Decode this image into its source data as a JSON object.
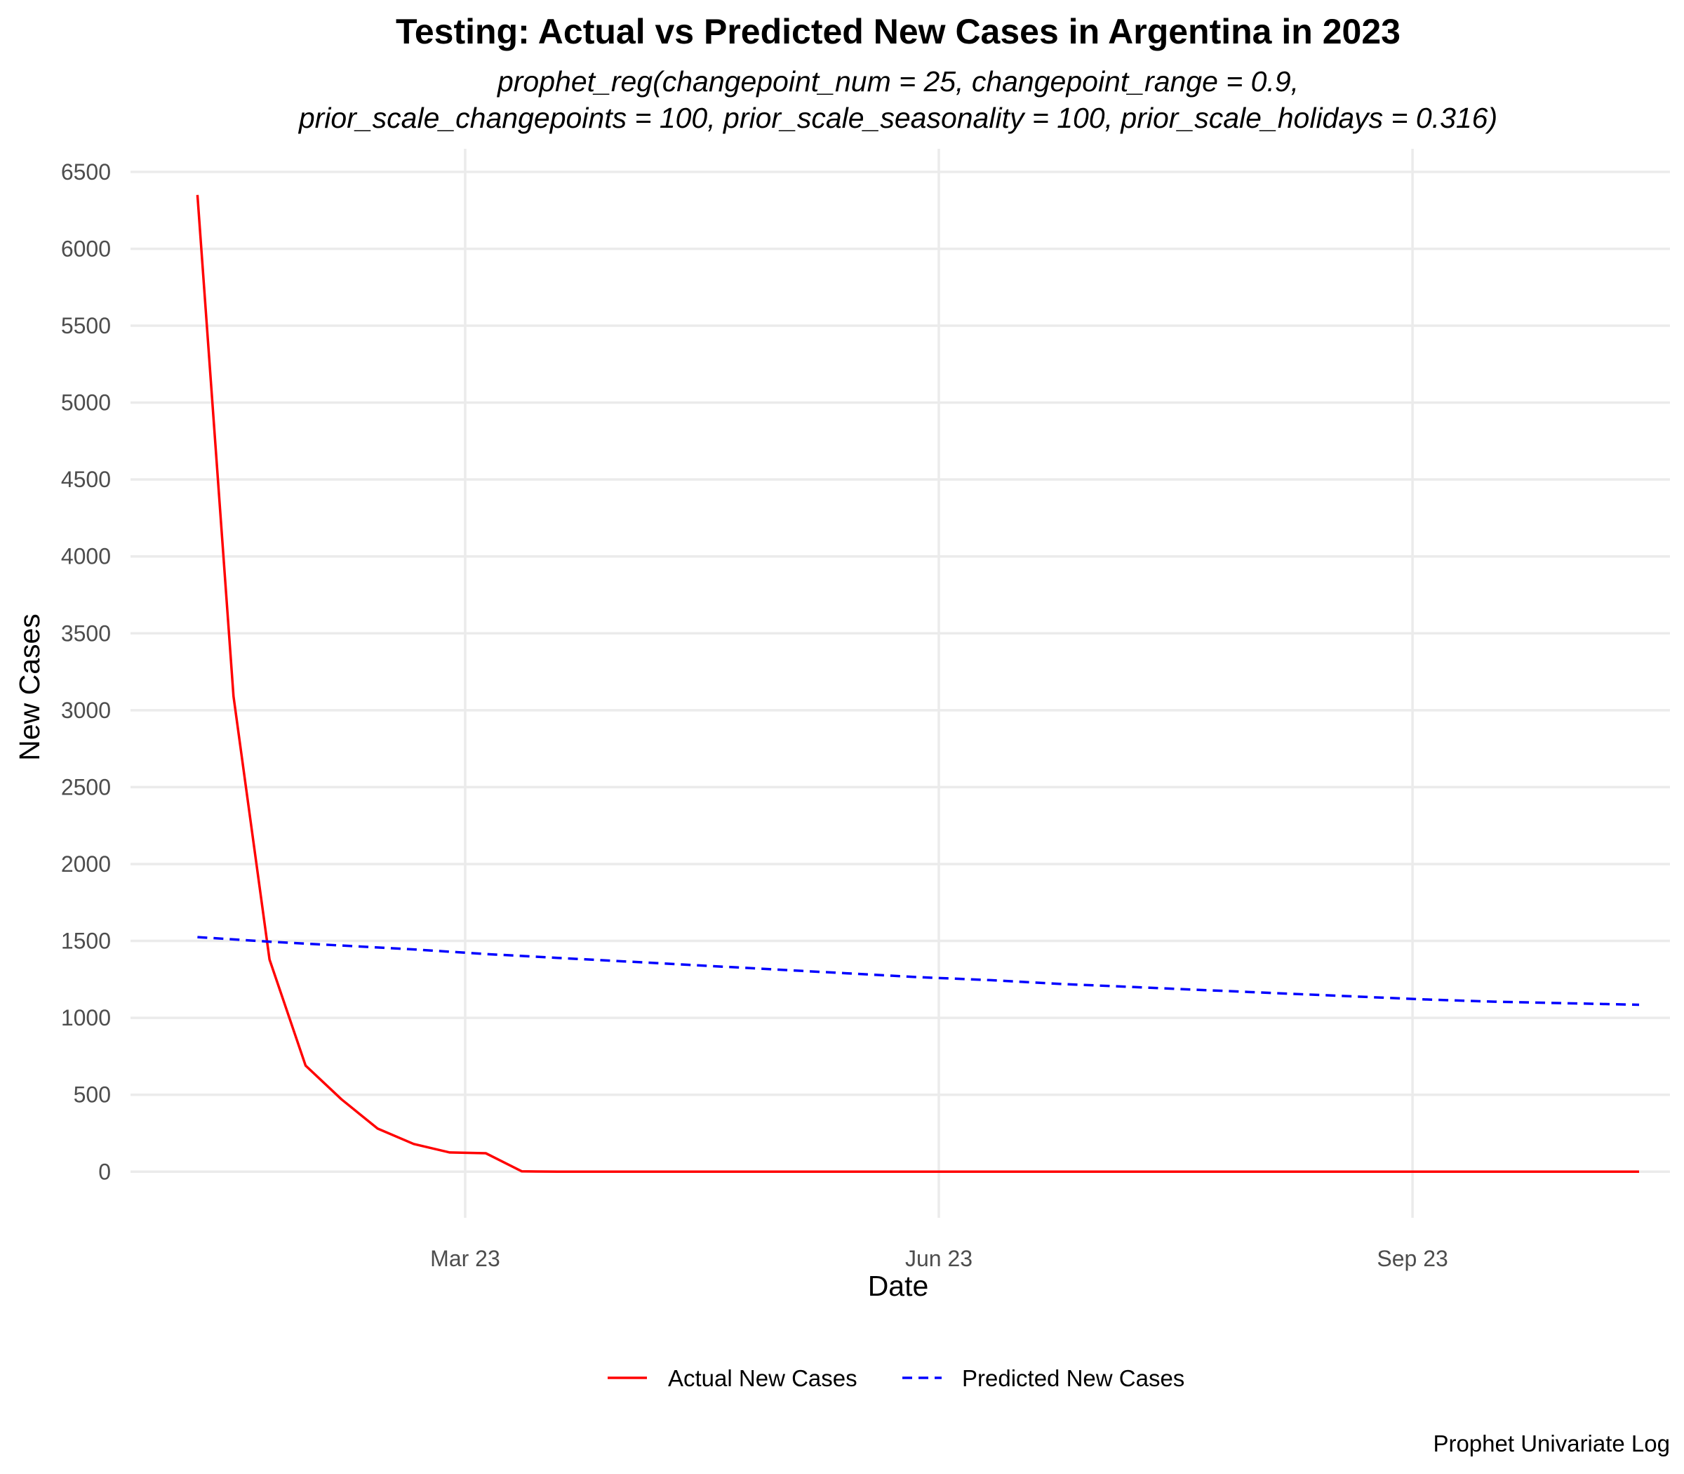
{
  "chart_data": {
    "type": "line",
    "title": "Testing: Actual vs Predicted New Cases in Argentina in 2023",
    "subtitle_lines": [
      "prophet_reg(changepoint_num = 25, changepoint_range = 0.9,",
      "prior_scale_changepoints = 100, prior_scale_seasonality = 100, prior_scale_holidays = 0.316)"
    ],
    "xlabel": "Date",
    "ylabel": "New Cases",
    "caption": "Prophet Univariate Log",
    "x_type": "date",
    "xlim": [
      "2022-12-26",
      "2023-10-21"
    ],
    "ylim": [
      -300,
      6650
    ],
    "y_ticks": [
      0,
      500,
      1000,
      1500,
      2000,
      2500,
      3000,
      3500,
      4000,
      4500,
      5000,
      5500,
      6000,
      6500
    ],
    "x_ticks": [
      {
        "date": "2023-03-01",
        "label": "Mar 23"
      },
      {
        "date": "2023-06-01",
        "label": "Jun 23"
      },
      {
        "date": "2023-09-01",
        "label": "Sep 23"
      }
    ],
    "grid": true,
    "legend_position": "bottom",
    "series": [
      {
        "name": "Actual New Cases",
        "color": "#ff0000",
        "dash": "solid",
        "points": [
          [
            "2023-01-08",
            6350
          ],
          [
            "2023-01-15",
            3090
          ],
          [
            "2023-01-22",
            1380
          ],
          [
            "2023-01-29",
            690
          ],
          [
            "2023-02-05",
            470
          ],
          [
            "2023-02-12",
            280
          ],
          [
            "2023-02-19",
            180
          ],
          [
            "2023-02-26",
            125
          ],
          [
            "2023-03-05",
            120
          ],
          [
            "2023-03-12",
            2
          ],
          [
            "2023-03-19",
            0
          ],
          [
            "2023-03-26",
            0
          ],
          [
            "2023-04-02",
            0
          ],
          [
            "2023-04-09",
            0
          ],
          [
            "2023-04-16",
            0
          ],
          [
            "2023-04-23",
            0
          ],
          [
            "2023-04-30",
            0
          ],
          [
            "2023-05-07",
            0
          ],
          [
            "2023-05-14",
            0
          ],
          [
            "2023-05-21",
            0
          ],
          [
            "2023-05-28",
            0
          ],
          [
            "2023-06-04",
            0
          ],
          [
            "2023-06-11",
            0
          ],
          [
            "2023-06-18",
            0
          ],
          [
            "2023-06-25",
            0
          ],
          [
            "2023-07-02",
            0
          ],
          [
            "2023-07-09",
            0
          ],
          [
            "2023-07-16",
            0
          ],
          [
            "2023-07-23",
            0
          ],
          [
            "2023-07-30",
            0
          ],
          [
            "2023-08-06",
            0
          ],
          [
            "2023-08-13",
            0
          ],
          [
            "2023-08-20",
            0
          ],
          [
            "2023-08-27",
            0
          ],
          [
            "2023-09-03",
            0
          ],
          [
            "2023-09-10",
            0
          ],
          [
            "2023-09-17",
            0
          ],
          [
            "2023-09-24",
            0
          ],
          [
            "2023-10-01",
            0
          ],
          [
            "2023-10-08",
            0
          ],
          [
            "2023-10-15",
            0
          ]
        ]
      },
      {
        "name": "Predicted New Cases",
        "color": "#0000ff",
        "dash": "dashed",
        "points": [
          [
            "2023-01-08",
            1525
          ],
          [
            "2023-01-22",
            1495
          ],
          [
            "2023-02-05",
            1470
          ],
          [
            "2023-02-19",
            1445
          ],
          [
            "2023-03-05",
            1415
          ],
          [
            "2023-03-19",
            1390
          ],
          [
            "2023-04-02",
            1365
          ],
          [
            "2023-04-16",
            1340
          ],
          [
            "2023-04-30",
            1315
          ],
          [
            "2023-05-14",
            1290
          ],
          [
            "2023-05-28",
            1265
          ],
          [
            "2023-06-11",
            1245
          ],
          [
            "2023-06-25",
            1220
          ],
          [
            "2023-07-09",
            1200
          ],
          [
            "2023-07-23",
            1180
          ],
          [
            "2023-08-06",
            1160
          ],
          [
            "2023-08-20",
            1140
          ],
          [
            "2023-09-03",
            1120
          ],
          [
            "2023-09-17",
            1105
          ],
          [
            "2023-10-01",
            1095
          ],
          [
            "2023-10-15",
            1085
          ]
        ]
      }
    ]
  }
}
